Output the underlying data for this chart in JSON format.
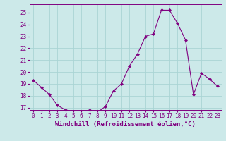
{
  "x": [
    0,
    1,
    2,
    3,
    4,
    5,
    6,
    7,
    8,
    9,
    10,
    11,
    12,
    13,
    14,
    15,
    16,
    17,
    18,
    19,
    20,
    21,
    22,
    23
  ],
  "y": [
    19.3,
    18.7,
    18.1,
    17.2,
    16.8,
    16.7,
    16.6,
    16.8,
    16.6,
    17.1,
    18.4,
    19.0,
    20.5,
    21.5,
    23.0,
    23.2,
    25.2,
    25.2,
    24.1,
    22.7,
    18.1,
    19.9,
    19.4,
    18.8
  ],
  "line_color": "#800080",
  "marker": "D",
  "marker_size": 2,
  "bg_color": "#cce9e9",
  "grid_color": "#aad4d4",
  "xlabel": "Windchill (Refroidissement éolien,°C)",
  "xlabel_color": "#800080",
  "tick_color": "#800080",
  "ylim": [
    16.8,
    25.7
  ],
  "xlim": [
    -0.5,
    23.5
  ],
  "yticks": [
    17,
    18,
    19,
    20,
    21,
    22,
    23,
    24,
    25
  ],
  "xticks": [
    0,
    1,
    2,
    3,
    4,
    5,
    6,
    7,
    8,
    9,
    10,
    11,
    12,
    13,
    14,
    15,
    16,
    17,
    18,
    19,
    20,
    21,
    22,
    23
  ],
  "tick_fontsize": 5.5,
  "xlabel_fontsize": 6.5
}
